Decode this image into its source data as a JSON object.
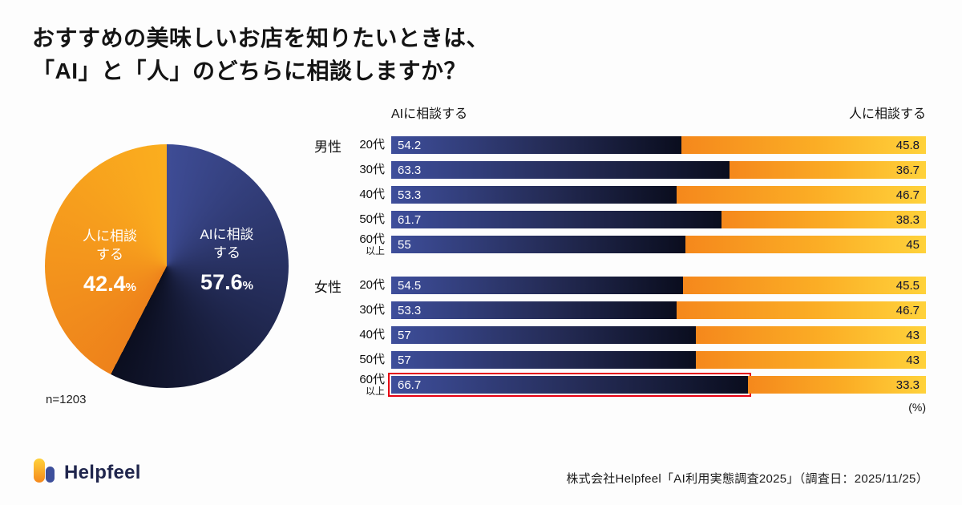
{
  "page": {
    "title_line1": "おすすめの美味しいお店を知りたいときは、",
    "title_line2": "「AI」と「人」のどちらに相談しますか？"
  },
  "colors": {
    "ai_start": "#3E4C95",
    "ai_end": "#0B0E1F",
    "human_deep": "#EE821B",
    "human_bright": "#FBAE1E",
    "highlight": "#E60012"
  },
  "pie": {
    "n_label": "n=1203",
    "slices": [
      {
        "label": "AIに相談する",
        "label_line1": "AIに相談",
        "label_line2": "する",
        "value": 57.6,
        "unit": "%"
      },
      {
        "label": "人に相談する",
        "label_line1": "人に相談",
        "label_line2": "する",
        "value": 42.4,
        "unit": "%"
      }
    ]
  },
  "bars": {
    "legend_left": "AIに相談する",
    "legend_right": "人に相談する",
    "unit_label": "(%)",
    "groups": [
      {
        "name": "男性",
        "rows": [
          {
            "age": "20代",
            "ai": 54.2,
            "human": 45.8
          },
          {
            "age": "30代",
            "ai": 63.3,
            "human": 36.7
          },
          {
            "age": "40代",
            "ai": 53.3,
            "human": 46.7
          },
          {
            "age": "50代",
            "ai": 61.7,
            "human": 38.3
          },
          {
            "age": "60代",
            "age_sub": "以上",
            "ai": 55,
            "human": 45
          }
        ]
      },
      {
        "name": "女性",
        "rows": [
          {
            "age": "20代",
            "ai": 54.5,
            "human": 45.5
          },
          {
            "age": "30代",
            "ai": 53.3,
            "human": 46.7
          },
          {
            "age": "40代",
            "ai": 57,
            "human": 43
          },
          {
            "age": "50代",
            "ai": 57,
            "human": 43
          },
          {
            "age": "60代",
            "age_sub": "以上",
            "ai": 66.7,
            "human": 33.3,
            "highlight": true
          }
        ]
      }
    ]
  },
  "footer": {
    "brand": "Helpfeel",
    "source": "株式会社Helpfeel「AI利用実態調査2025」（調査日：2025/11/25）"
  },
  "chart_data": [
    {
      "type": "pie",
      "title": "おすすめの美味しいお店を知りたいときは、「AI」と「人」のどちらに相談しますか？",
      "labels": [
        "AIに相談する",
        "人に相談する"
      ],
      "values": [
        57.6,
        42.4
      ],
      "unit": "%",
      "annotations": [
        "n=1203"
      ]
    },
    {
      "type": "bar",
      "subtype": "horizontal-stacked-100pct",
      "categories": [
        "男性 20代",
        "男性 30代",
        "男性 40代",
        "男性 50代",
        "男性 60代以上",
        "女性 20代",
        "女性 30代",
        "女性 40代",
        "女性 50代",
        "女性 60代以上"
      ],
      "series": [
        {
          "name": "AIに相談する",
          "values": [
            54.2,
            63.3,
            53.3,
            61.7,
            55,
            54.5,
            53.3,
            57,
            57,
            66.7
          ]
        },
        {
          "name": "人に相談する",
          "values": [
            45.8,
            36.7,
            46.7,
            38.3,
            45,
            45.5,
            46.7,
            43,
            43,
            33.3
          ]
        }
      ],
      "xlim": [
        0,
        100
      ],
      "unit": "%",
      "highlighted_category": "女性 60代以上",
      "legend_position": "top"
    }
  ]
}
